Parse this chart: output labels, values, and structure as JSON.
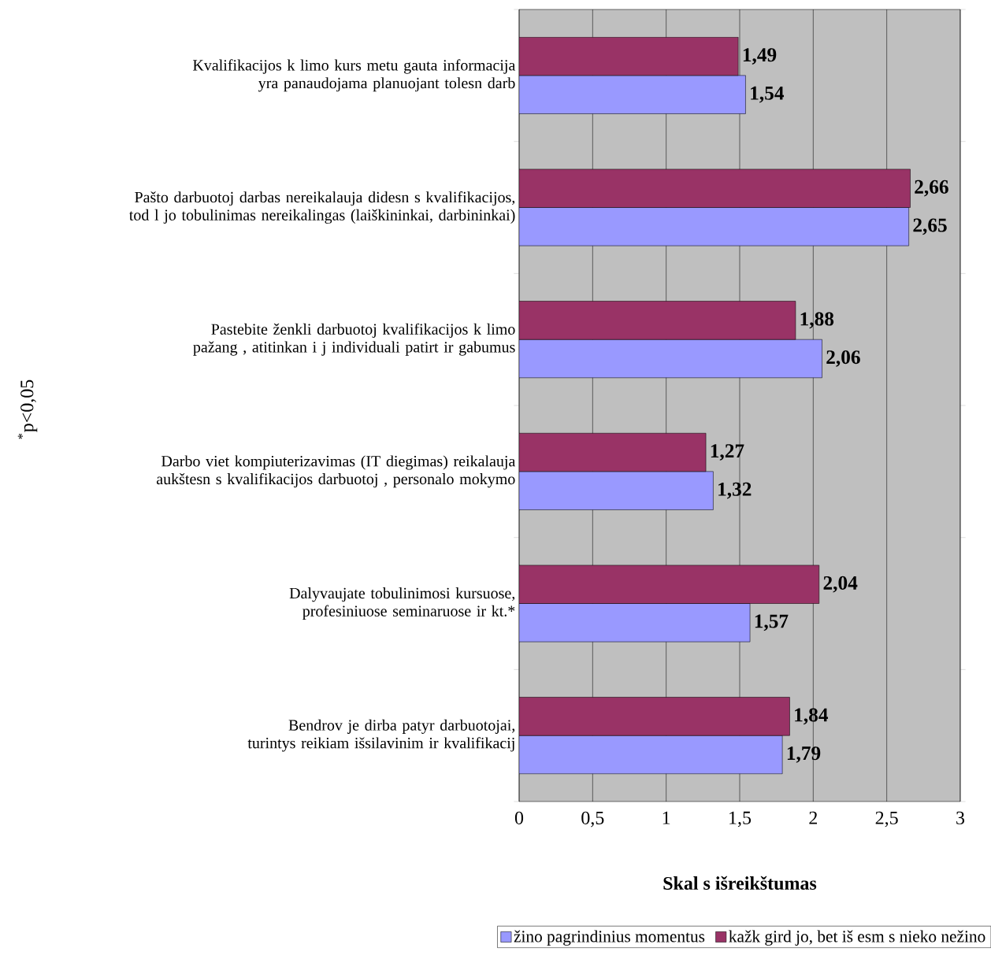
{
  "chart_data": {
    "type": "bar",
    "orientation": "horizontal",
    "xlabel": "Skal s išreikštumas",
    "categories": [
      "Kvalifikacijos k limo kurs metu gauta informacija yra panaudojama planuojant tolesn darb",
      "Pašto darbuotoj darbas nereikalauja didesn s kvalifikacijos, tod l jo tobulinimas nereikalingas (laiškininkai, darbininkai)",
      "Pastebite ženkli darbuotoj kvalifikacijos k limo pažang , atitinkan i j individuali patirt ir gabumus",
      "Darbo viet kompiuterizavimas (IT diegimas) reikalauja aukštesn s kvalifikacijos darbuotoj , personalo mokymo",
      "Dalyvaujate tobulinimosi kursuose, profesiniuose seminaruose ir kt.*",
      "Bendrov je dirba patyr darbuotojai, turintys reikiam išsilavinim ir kvalifikacij"
    ],
    "series": [
      {
        "name": "žino pagrindinius momentus",
        "color": "#9999ff",
        "values": [
          1.54,
          2.65,
          2.06,
          1.32,
          1.57,
          1.79
        ],
        "value_labels": [
          "1,54",
          "2,65",
          "2,06",
          "1,32",
          "1,57",
          "1,79"
        ]
      },
      {
        "name": "kažk gird jo, bet iš esm s nieko nežino",
        "color": "#993366",
        "values": [
          1.49,
          2.66,
          1.88,
          1.27,
          2.04,
          1.84
        ],
        "value_labels": [
          "1,49",
          "2,66",
          "1,88",
          "1,27",
          "2,04",
          "1,84"
        ]
      }
    ],
    "xlim": [
      0,
      3
    ],
    "xticks": [
      0,
      {
        "value": 0.5,
        "label": "0,5"
      },
      1,
      {
        "value": 1.5,
        "label": "1,5"
      },
      2,
      {
        "value": 2.5,
        "label": "2,5"
      },
      3
    ],
    "grid": "x",
    "legend": "bottom right",
    "annotations": [
      "$^{*}$p<0,05"
    ]
  }
}
